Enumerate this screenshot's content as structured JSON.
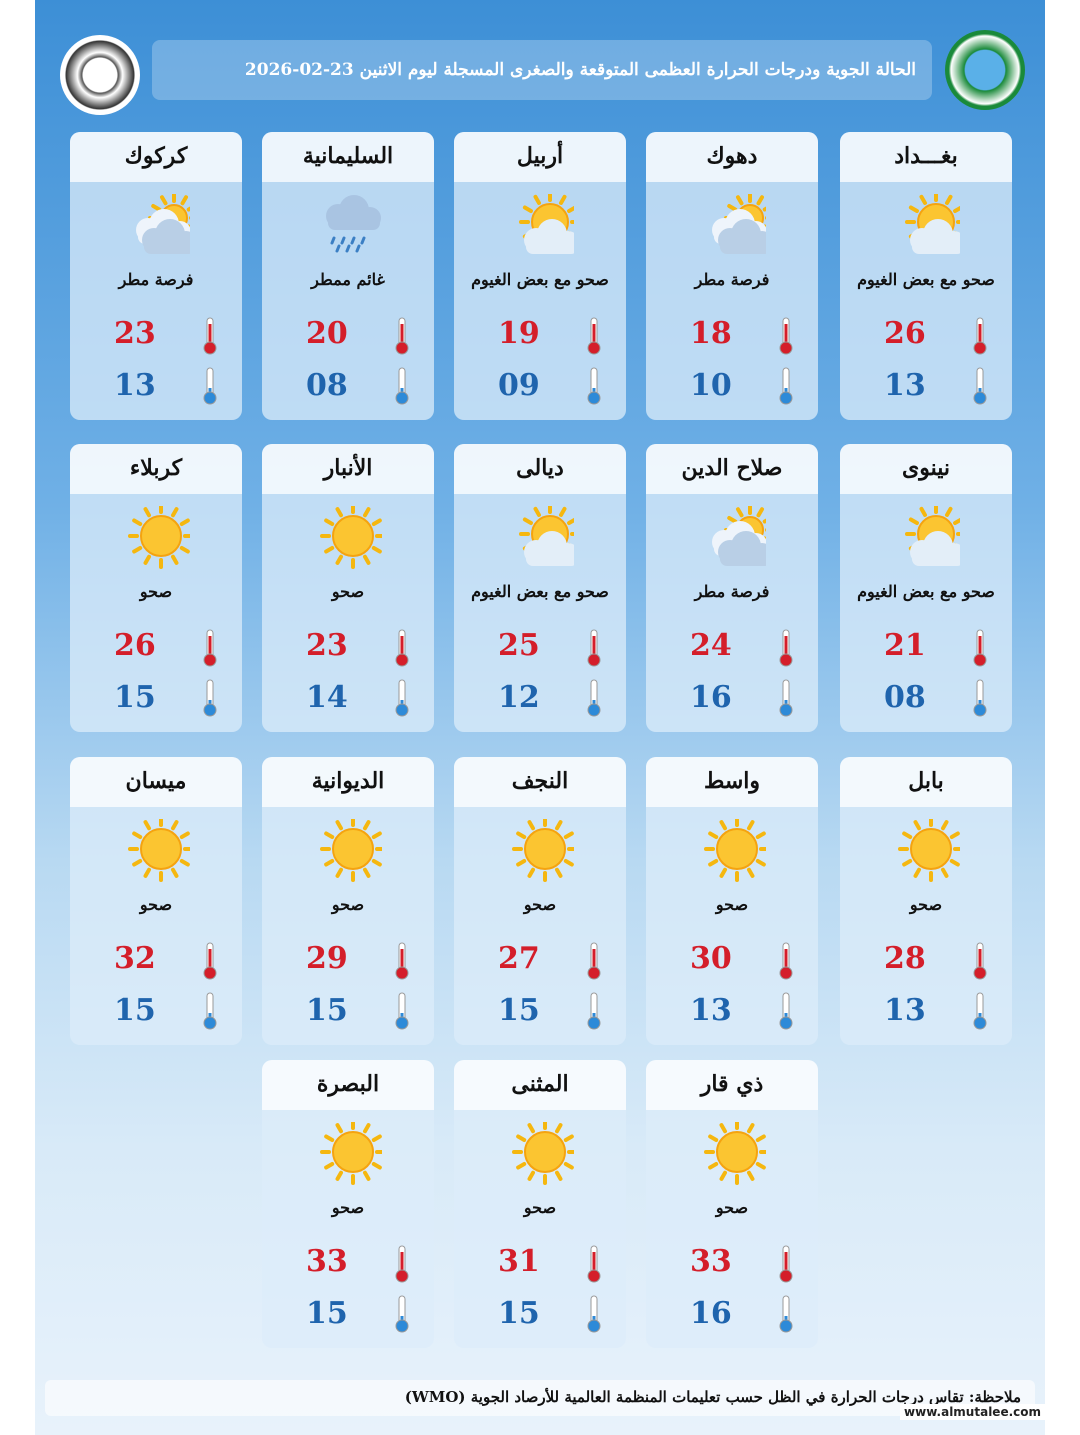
{
  "header": {
    "title": "الحالة الجوية ودرجات الحرارة العظمى المتوقعة والصغرى المسجلة ليوم الاثنين 23-02-2026"
  },
  "cities": [
    {
      "name": "بغـــداد",
      "condition": "صحو مع بعض الغيوم",
      "max": "26",
      "min": "13"
    },
    {
      "name": "دهوك",
      "condition": "فرصة مطر",
      "max": "18",
      "min": "10"
    },
    {
      "name": "أربيل",
      "condition": "صحو مع بعض الغيوم",
      "max": "19",
      "min": "09"
    },
    {
      "name": "السليمانية",
      "condition": "غائم ممطر",
      "max": "20",
      "min": "08"
    },
    {
      "name": "كركوك",
      "condition": "فرصة مطر",
      "max": "23",
      "min": "13"
    },
    {
      "name": "نينوى",
      "condition": "صحو مع بعض الغيوم",
      "max": "21",
      "min": "08"
    },
    {
      "name": "صلاح الدين",
      "condition": "فرصة مطر",
      "max": "24",
      "min": "16"
    },
    {
      "name": "ديالى",
      "condition": "صحو مع بعض الغيوم",
      "max": "25",
      "min": "12"
    },
    {
      "name": "الأنبار",
      "condition": "صحو",
      "max": "23",
      "min": "14"
    },
    {
      "name": "كربلاء",
      "condition": "صحو",
      "max": "26",
      "min": "15"
    },
    {
      "name": "بابل",
      "condition": "صحو",
      "max": "28",
      "min": "13"
    },
    {
      "name": "واسط",
      "condition": "صحو",
      "max": "30",
      "min": "13"
    },
    {
      "name": "النجف",
      "condition": "صحو",
      "max": "27",
      "min": "15"
    },
    {
      "name": "الديوانية",
      "condition": "صحو",
      "max": "29",
      "min": "15"
    },
    {
      "name": "ميسان",
      "condition": "صحو",
      "max": "32",
      "min": "15"
    },
    {
      "name": "ذي قار",
      "condition": "صحو",
      "max": "33",
      "min": "16"
    },
    {
      "name": "المثنى",
      "condition": "صحو",
      "max": "31",
      "min": "15"
    },
    {
      "name": "البصرة",
      "condition": "صحو",
      "max": "33",
      "min": "15"
    }
  ],
  "footer": {
    "note": "ملاحظة: تقاس درجات الحرارة في الظل حسب تعليمات المنظمة العالمية للأرصاد الجوية (WMO)",
    "watermark": "www.almutalee.com"
  }
}
